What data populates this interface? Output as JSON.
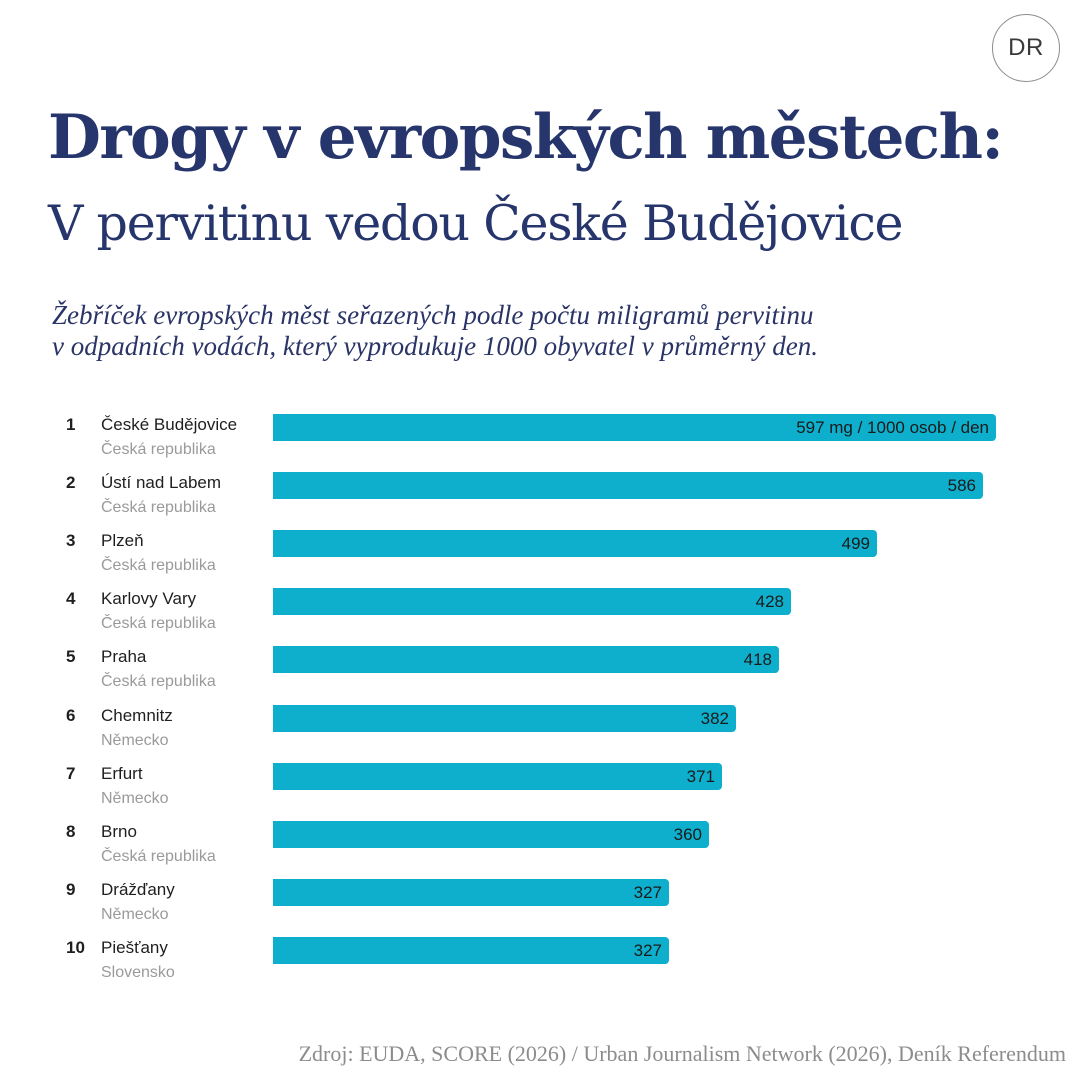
{
  "brand": {
    "logo_text": "DR"
  },
  "header": {
    "title": "Drogy v evropských městech:",
    "subtitle": "V pervitinu vedou České Budějovice",
    "description_line1": "Žebříček evropských měst seřazených podle počtu miligramů pervitinu",
    "description_line2": "v odpadních vodách, který vyprodukuje 1000 obyvatel v průměrný den."
  },
  "colors": {
    "title": "#26356b",
    "bar": "#0eafcd",
    "country_text": "#9a9a9a",
    "source_text": "#8c8c8c"
  },
  "chart_data": {
    "type": "bar",
    "orientation": "horizontal",
    "title": "Drogy v evropských městech: V pervitinu vedou České Budějovice",
    "unit_label": "597 mg / 1000 osob / den",
    "rows": [
      {
        "rank": "1",
        "city": "České Budějovice",
        "country": "Česká republika",
        "value": 597,
        "label": "597 mg / 1000 osob / den"
      },
      {
        "rank": "2",
        "city": "Ústí nad Labem",
        "country": "Česká republika",
        "value": 586,
        "label": "586"
      },
      {
        "rank": "3",
        "city": "Plzeň",
        "country": "Česká republika",
        "value": 499,
        "label": "499"
      },
      {
        "rank": "4",
        "city": "Karlovy Vary",
        "country": "Česká republika",
        "value": 428,
        "label": "428"
      },
      {
        "rank": "5",
        "city": "Praha",
        "country": "Česká republika",
        "value": 418,
        "label": "418"
      },
      {
        "rank": "6",
        "city": "Chemnitz",
        "country": "Německo",
        "value": 382,
        "label": "382"
      },
      {
        "rank": "7",
        "city": "Erfurt",
        "country": "Německo",
        "value": 371,
        "label": "371"
      },
      {
        "rank": "8",
        "city": "Brno",
        "country": "Česká republika",
        "value": 360,
        "label": "360"
      },
      {
        "rank": "9",
        "city": "Drážďany",
        "country": "Německo",
        "value": 327,
        "label": "327"
      },
      {
        "rank": "10",
        "city": "Piešťany",
        "country": "Slovensko",
        "value": 327,
        "label": "327"
      }
    ],
    "xlim": [
      0,
      597
    ]
  },
  "footer": {
    "source": "Zdroj: EUDA, SCORE (2026) / Urban Journalism Network (2026), Deník Referendum"
  }
}
